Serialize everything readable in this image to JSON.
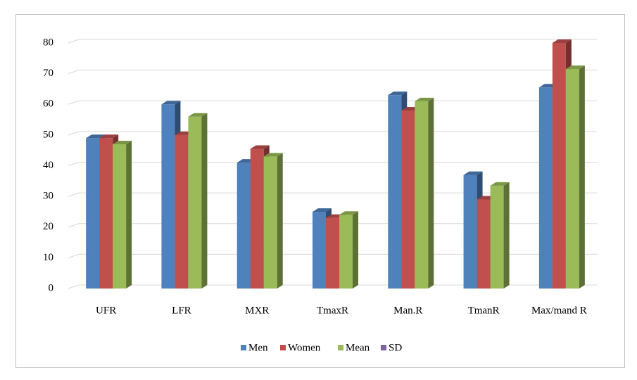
{
  "chart_data": {
    "type": "bar",
    "categories": [
      "UFR",
      "LFR",
      "MXR",
      "TmaxR",
      "Man.R",
      "TmanR",
      "Max/mand R"
    ],
    "series": [
      {
        "name": "Men",
        "color": "#4f81bd",
        "values": [
          49,
          60,
          41,
          25,
          63,
          37,
          65.5
        ]
      },
      {
        "name": "Women",
        "color": "#c0504d",
        "values": [
          49,
          50,
          45.5,
          23,
          58,
          29,
          80
        ]
      },
      {
        "name": "Mean",
        "color": "#9bbb59",
        "values": [
          47,
          56,
          43,
          24,
          61,
          33.5,
          71.5
        ]
      },
      {
        "name": "SD",
        "color": "#8064a2",
        "values": [
          null,
          null,
          null,
          null,
          null,
          null,
          null
        ]
      }
    ],
    "ylim": [
      0,
      80
    ],
    "yticks": [
      0,
      10,
      20,
      30,
      40,
      50,
      60,
      70,
      80
    ],
    "grid": true,
    "legend": "bottom"
  }
}
